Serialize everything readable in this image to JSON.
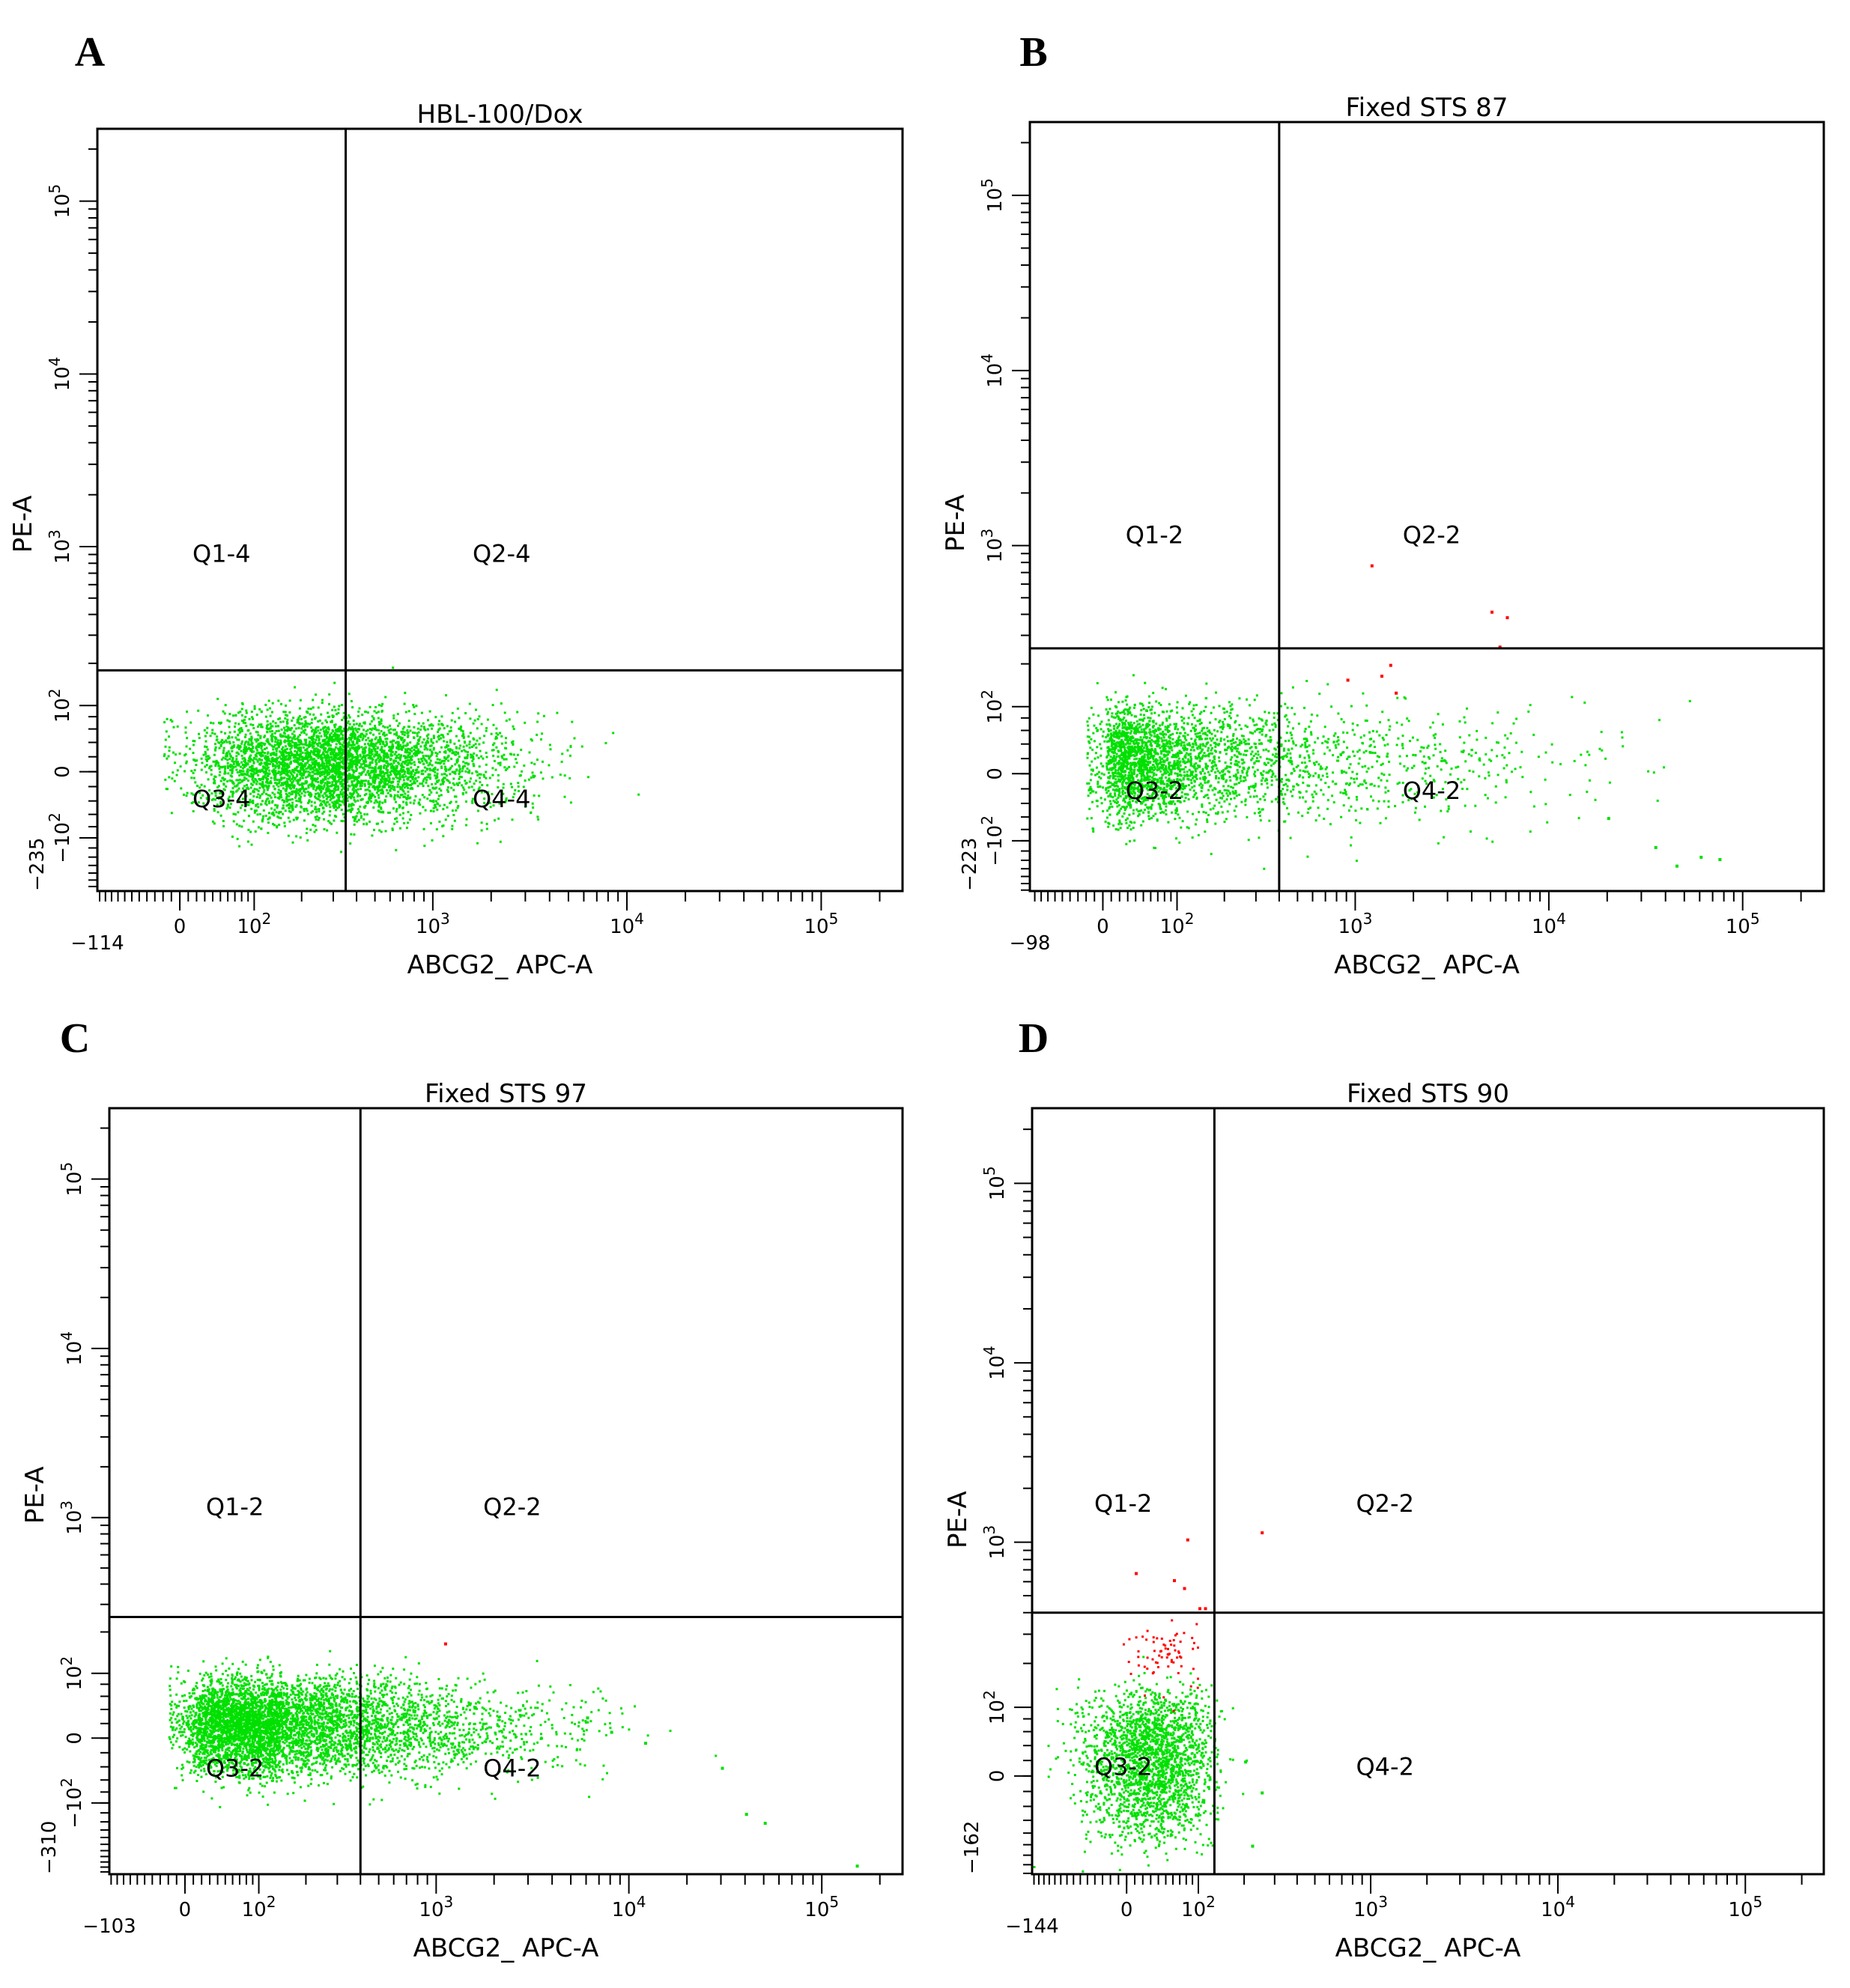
{
  "chart_data": [
    {
      "type": "scatter",
      "panel": "A",
      "title": "HBL-100/Dox",
      "xlabel": "ABCG2_ APC-A",
      "ylabel": "PE-A",
      "x_scale": "biexponential",
      "y_scale": "biexponential",
      "xlim": [
        -114,
        262144
      ],
      "ylim": [
        -235,
        262144
      ],
      "x_ticks": [
        "0",
        "10^2",
        "10^3",
        "10^4",
        "10^5"
      ],
      "x_min_label": "−114",
      "y_ticks": [
        "−10^2",
        "0",
        "10^2",
        "10^3",
        "10^4",
        "10^5"
      ],
      "y_min_label": "−235",
      "quadrant_gate": {
        "x": 350,
        "y": 180
      },
      "quadrant_labels": {
        "q1": "Q1-4",
        "q2": "Q2-4",
        "q3": "Q3-4",
        "q4": "Q4-4"
      },
      "populations": [
        {
          "color": "#00e000",
          "x_center": 350,
          "x_spread": 0.42,
          "y_center": 10,
          "y_spread": 38,
          "count": 4200
        }
      ],
      "outliers": [],
      "grid": false,
      "legend": "none"
    },
    {
      "type": "scatter",
      "panel": "B",
      "title": "Fixed STS 87",
      "xlabel": "ABCG2_ APC-A",
      "ylabel": "PE-A",
      "x_scale": "biexponential",
      "y_scale": "biexponential",
      "xlim": [
        -98,
        262144
      ],
      "ylim": [
        -223,
        262144
      ],
      "x_ticks": [
        "0",
        "10^2",
        "10^3",
        "10^4",
        "10^5"
      ],
      "x_min_label": "−98",
      "y_ticks": [
        "−10^2",
        "0",
        "10^2",
        "10^3",
        "10^4",
        "10^5"
      ],
      "y_min_label": "−223",
      "quadrant_gate": {
        "x": 400,
        "y": 250
      },
      "quadrant_labels": {
        "q1": "Q1-2",
        "q2": "Q2-2",
        "q3": "Q3-2",
        "q4": "Q4-2"
      },
      "populations": [
        {
          "color": "#00e000",
          "x_center": 90,
          "x_spread": 0.55,
          "y_center": 20,
          "y_spread": 40,
          "count": 2600
        },
        {
          "color": "#00e000",
          "x_center": 2000,
          "x_spread": 0.55,
          "y_center": 15,
          "y_spread": 45,
          "count": 350
        }
      ],
      "outliers": [
        {
          "x": 1200,
          "y": 780,
          "color": "#ff0000"
        },
        {
          "x": 5000,
          "y": 420,
          "color": "#ff0000"
        },
        {
          "x": 6000,
          "y": 390,
          "color": "#ff0000"
        },
        {
          "x": 5500,
          "y": 260,
          "color": "#ff0000"
        },
        {
          "x": 1500,
          "y": 200,
          "color": "#ff0000"
        },
        {
          "x": 1350,
          "y": 170,
          "color": "#ff0000"
        },
        {
          "x": 1600,
          "y": 130,
          "color": "#ff0000"
        },
        {
          "x": 900,
          "y": 160,
          "color": "#ff0000"
        },
        {
          "x": 20000,
          "y": -60,
          "color": "#00e000"
        },
        {
          "x": 35000,
          "y": -110,
          "color": "#00e000"
        },
        {
          "x": 60000,
          "y": -130,
          "color": "#00e000"
        },
        {
          "x": 75000,
          "y": -135,
          "color": "#00e000"
        },
        {
          "x": 45000,
          "y": -150,
          "color": "#00e000"
        }
      ],
      "grid": false,
      "legend": "none"
    },
    {
      "type": "scatter",
      "panel": "C",
      "title": "Fixed STS 97",
      "xlabel": "ABCG2_ APC-A",
      "ylabel": "PE-A",
      "x_scale": "biexponential",
      "y_scale": "biexponential",
      "xlim": [
        -103,
        262144
      ],
      "ylim": [
        -310,
        262144
      ],
      "x_ticks": [
        "0",
        "10^2",
        "10^3",
        "10^4",
        "10^5"
      ],
      "x_min_label": "−103",
      "y_ticks": [
        "−10^2",
        "0",
        "10^2",
        "10^3",
        "10^4",
        "10^5"
      ],
      "y_min_label": "−310",
      "quadrant_gate": {
        "x": 400,
        "y": 250
      },
      "quadrant_labels": {
        "q1": "Q1-2",
        "q2": "Q2-2",
        "q3": "Q3-2",
        "q4": "Q4-2"
      },
      "populations": [
        {
          "color": "#00e000",
          "x_center": 130,
          "x_spread": 0.45,
          "y_center": 20,
          "y_spread": 35,
          "count": 4500
        },
        {
          "color": "#00e000",
          "x_center": 1200,
          "x_spread": 0.45,
          "y_center": 15,
          "y_spread": 35,
          "count": 700
        }
      ],
      "outliers": [
        {
          "x": 1100,
          "y": 170,
          "color": "#ff0000"
        },
        {
          "x": 6000,
          "y": 30,
          "color": "#00e000"
        },
        {
          "x": 8000,
          "y": 10,
          "color": "#00e000"
        },
        {
          "x": 12000,
          "y": -5,
          "color": "#00e000"
        },
        {
          "x": 30000,
          "y": -40,
          "color": "#00e000"
        },
        {
          "x": 40000,
          "y": -120,
          "color": "#00e000"
        },
        {
          "x": 50000,
          "y": -140,
          "color": "#00e000"
        },
        {
          "x": 150000,
          "y": -270,
          "color": "#00e000"
        }
      ],
      "grid": false,
      "legend": "none"
    },
    {
      "type": "scatter",
      "panel": "D",
      "title": "Fixed STS 90",
      "xlabel": "ABCG2_ APC-A",
      "ylabel": "PE-A",
      "x_scale": "biexponential",
      "y_scale": "biexponential",
      "xlim": [
        -144,
        262144
      ],
      "ylim": [
        -162,
        262144
      ],
      "x_ticks": [
        "0",
        "10^2",
        "10^3",
        "10^4",
        "10^5"
      ],
      "x_min_label": "−144",
      "y_ticks": [
        "0",
        "10^2",
        "10^3",
        "10^4",
        "10^5"
      ],
      "y_min_label": "−162",
      "quadrant_gate": {
        "x": 130,
        "y": 400
      },
      "quadrant_labels": {
        "q1": "Q1-2",
        "q2": "Q2-2",
        "q3": "Q3-2",
        "q4": "Q4-2"
      },
      "populations": [
        {
          "color": "#00e000",
          "x_center": 30,
          "x_spread": 45,
          "y_center": 20,
          "y_spread": 55,
          "count": 2200
        },
        {
          "color": "#ff0000",
          "x_center": 50,
          "x_spread": 25,
          "y_center": 230,
          "y_spread": 50,
          "count": 70
        }
      ],
      "outliers": [
        {
          "x": 80,
          "y": 1050,
          "color": "#ff0000"
        },
        {
          "x": 250,
          "y": 1150,
          "color": "#ff0000"
        },
        {
          "x": 10,
          "y": 680,
          "color": "#ff0000"
        },
        {
          "x": 60,
          "y": 620,
          "color": "#ff0000"
        },
        {
          "x": 75,
          "y": 560,
          "color": "#ff0000"
        },
        {
          "x": 100,
          "y": 430,
          "color": "#ff0000"
        },
        {
          "x": 110,
          "y": 430,
          "color": "#ff0000"
        },
        {
          "x": 200,
          "y": 20,
          "color": "#00e000"
        },
        {
          "x": 250,
          "y": -20,
          "color": "#00e000"
        },
        {
          "x": 220,
          "y": -100,
          "color": "#00e000"
        }
      ],
      "grid": false,
      "legend": "none"
    }
  ]
}
